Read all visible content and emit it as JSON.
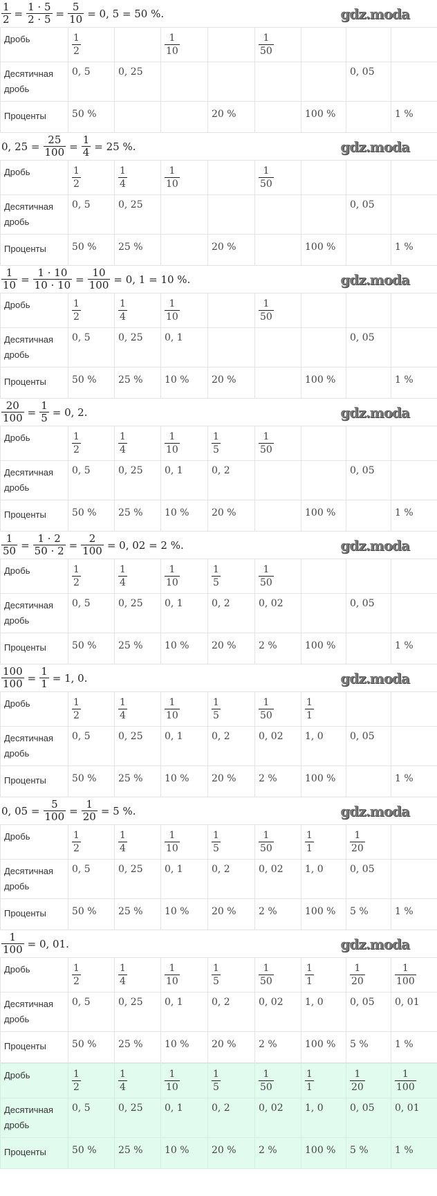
{
  "row_labels": [
    "Дробь",
    "Десятичная дробь",
    "Проценты"
  ],
  "watermark": "gdz.moda",
  "colors": {
    "final_table_bg": "#e2fbef",
    "grid": "#e3e3e3"
  },
  "steps": [
    {
      "formula": [
        {
          "n": "1",
          "d": "2"
        },
        "=",
        {
          "n": "1 · 5",
          "d": "2 · 5"
        },
        "=",
        {
          "n": "5",
          "d": "10"
        },
        "= 0, 5 = 50 %."
      ],
      "fractions": [
        {
          "n": "1",
          "d": "2"
        },
        null,
        {
          "n": "1",
          "d": "10"
        },
        null,
        {
          "n": "1",
          "d": "50"
        },
        null,
        null,
        null
      ],
      "decimals": [
        "0, 5",
        "0, 25",
        "",
        "",
        "",
        "",
        "0, 05",
        ""
      ],
      "percents": [
        "50 %",
        "",
        "",
        "20 %",
        "",
        "100 %",
        "",
        "1 %"
      ]
    },
    {
      "formula": [
        "0, 25 =",
        {
          "n": "25",
          "d": "100"
        },
        "=",
        {
          "n": "1",
          "d": "4"
        },
        "= 25 %."
      ],
      "fractions": [
        {
          "n": "1",
          "d": "2"
        },
        {
          "n": "1",
          "d": "4"
        },
        {
          "n": "1",
          "d": "10"
        },
        null,
        {
          "n": "1",
          "d": "50"
        },
        null,
        null,
        null
      ],
      "decimals": [
        "0, 5",
        "0, 25",
        "",
        "",
        "",
        "",
        "0, 05",
        ""
      ],
      "percents": [
        "50 %",
        "25 %",
        "",
        "20 %",
        "",
        "100 %",
        "",
        "1 %"
      ]
    },
    {
      "formula": [
        {
          "n": "1",
          "d": "10"
        },
        "=",
        {
          "n": "1 · 10",
          "d": "10 · 10"
        },
        "=",
        {
          "n": "10",
          "d": "100"
        },
        "= 0, 1 = 10 %."
      ],
      "fractions": [
        {
          "n": "1",
          "d": "2"
        },
        {
          "n": "1",
          "d": "4"
        },
        {
          "n": "1",
          "d": "10"
        },
        null,
        {
          "n": "1",
          "d": "50"
        },
        null,
        null,
        null
      ],
      "decimals": [
        "0, 5",
        "0, 25",
        "0, 1",
        "",
        "",
        "",
        "0, 05",
        ""
      ],
      "percents": [
        "50 %",
        "25 %",
        "10 %",
        "20 %",
        "",
        "100 %",
        "",
        "1 %"
      ]
    },
    {
      "formula": [
        {
          "n": "20",
          "d": "100"
        },
        "=",
        {
          "n": "1",
          "d": "5"
        },
        "= 0, 2."
      ],
      "fractions": [
        {
          "n": "1",
          "d": "2"
        },
        {
          "n": "1",
          "d": "4"
        },
        {
          "n": "1",
          "d": "10"
        },
        {
          "n": "1",
          "d": "5"
        },
        {
          "n": "1",
          "d": "50"
        },
        null,
        null,
        null
      ],
      "decimals": [
        "0, 5",
        "0, 25",
        "0, 1",
        "0, 2",
        "",
        "",
        "0, 05",
        ""
      ],
      "percents": [
        "50 %",
        "25 %",
        "10 %",
        "20 %",
        "",
        "100 %",
        "",
        "1 %"
      ]
    },
    {
      "formula": [
        {
          "n": "1",
          "d": "50"
        },
        "=",
        {
          "n": "1 · 2",
          "d": "50 · 2"
        },
        "=",
        {
          "n": "2",
          "d": "100"
        },
        "= 0, 02 = 2 %."
      ],
      "fractions": [
        {
          "n": "1",
          "d": "2"
        },
        {
          "n": "1",
          "d": "4"
        },
        {
          "n": "1",
          "d": "10"
        },
        {
          "n": "1",
          "d": "5"
        },
        {
          "n": "1",
          "d": "50"
        },
        null,
        null,
        null
      ],
      "decimals": [
        "0, 5",
        "0, 25",
        "0, 1",
        "0, 2",
        "0, 02",
        "",
        "0, 05",
        ""
      ],
      "percents": [
        "50 %",
        "25 %",
        "10 %",
        "20 %",
        "2 %",
        "100 %",
        "",
        "1 %"
      ]
    },
    {
      "formula": [
        {
          "n": "100",
          "d": "100"
        },
        "=",
        {
          "n": "1",
          "d": "1"
        },
        "= 1, 0."
      ],
      "fractions": [
        {
          "n": "1",
          "d": "2"
        },
        {
          "n": "1",
          "d": "4"
        },
        {
          "n": "1",
          "d": "10"
        },
        {
          "n": "1",
          "d": "5"
        },
        {
          "n": "1",
          "d": "50"
        },
        {
          "n": "1",
          "d": "1"
        },
        null,
        null
      ],
      "decimals": [
        "0, 5",
        "0, 25",
        "0, 1",
        "0, 2",
        "0, 02",
        "1, 0",
        "0, 05",
        ""
      ],
      "percents": [
        "50 %",
        "25 %",
        "10 %",
        "20 %",
        "2 %",
        "100 %",
        "",
        "1 %"
      ]
    },
    {
      "formula": [
        "0, 05 =",
        {
          "n": "5",
          "d": "100"
        },
        "=",
        {
          "n": "1",
          "d": "20"
        },
        "= 5 %."
      ],
      "fractions": [
        {
          "n": "1",
          "d": "2"
        },
        {
          "n": "1",
          "d": "4"
        },
        {
          "n": "1",
          "d": "10"
        },
        {
          "n": "1",
          "d": "5"
        },
        {
          "n": "1",
          "d": "50"
        },
        {
          "n": "1",
          "d": "1"
        },
        {
          "n": "1",
          "d": "20"
        },
        null
      ],
      "decimals": [
        "0, 5",
        "0, 25",
        "0, 1",
        "0, 2",
        "0, 02",
        "1, 0",
        "0, 05",
        ""
      ],
      "percents": [
        "50 %",
        "25 %",
        "10 %",
        "20 %",
        "2 %",
        "100 %",
        "5 %",
        "1 %"
      ]
    },
    {
      "formula": [
        {
          "n": "1",
          "d": "100"
        },
        "= 0, 01."
      ],
      "fractions": [
        {
          "n": "1",
          "d": "2"
        },
        {
          "n": "1",
          "d": "4"
        },
        {
          "n": "1",
          "d": "10"
        },
        {
          "n": "1",
          "d": "5"
        },
        {
          "n": "1",
          "d": "50"
        },
        {
          "n": "1",
          "d": "1"
        },
        {
          "n": "1",
          "d": "20"
        },
        {
          "n": "1",
          "d": "100"
        }
      ],
      "decimals": [
        "0, 5",
        "0, 25",
        "0, 1",
        "0, 2",
        "0, 02",
        "1, 0",
        "0, 05",
        "0, 01"
      ],
      "percents": [
        "50 %",
        "25 %",
        "10 %",
        "20 %",
        "2 %",
        "100 %",
        "5 %",
        "1 %"
      ]
    },
    {
      "final": true,
      "formula": [],
      "fractions": [
        {
          "n": "1",
          "d": "2"
        },
        {
          "n": "1",
          "d": "4"
        },
        {
          "n": "1",
          "d": "10"
        },
        {
          "n": "1",
          "d": "5"
        },
        {
          "n": "1",
          "d": "50"
        },
        {
          "n": "1",
          "d": "1"
        },
        {
          "n": "1",
          "d": "20"
        },
        {
          "n": "1",
          "d": "100"
        }
      ],
      "decimals": [
        "0, 5",
        "0, 25",
        "0, 1",
        "0, 2",
        "0, 02",
        "1, 0",
        "0, 05",
        "0, 01"
      ],
      "percents": [
        "50 %",
        "25 %",
        "10 %",
        "20 %",
        "2 %",
        "100 %",
        "5 %",
        "1 %"
      ]
    }
  ]
}
